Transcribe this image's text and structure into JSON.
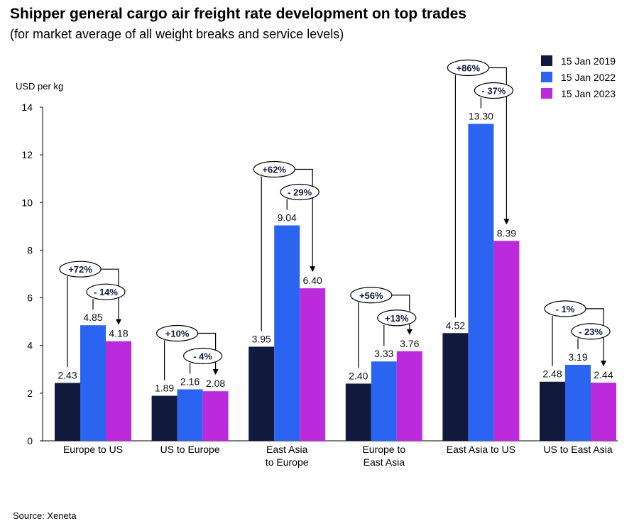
{
  "title": "Shipper general cargo air freight rate development on top trades",
  "subtitle": "(for market average of all weight breaks and service levels)",
  "source": "Source: Xeneta",
  "chart_data": {
    "type": "bar",
    "ylabel": "USD per kg",
    "ylim": [
      0,
      14
    ],
    "yticks": [
      0,
      2,
      4,
      6,
      8,
      10,
      12,
      14
    ],
    "grid": false,
    "legend_position": "top-right",
    "categories": [
      [
        "Europe to US"
      ],
      [
        "US to Europe"
      ],
      [
        "East Asia",
        "to Europe"
      ],
      [
        "Europe to",
        "East Asia"
      ],
      [
        "East Asia to US"
      ],
      [
        "US to East Asia"
      ]
    ],
    "series": [
      {
        "name": "15 Jan 2019",
        "color": "#111a3c",
        "values": [
          2.43,
          1.89,
          3.95,
          2.4,
          4.52,
          2.48
        ],
        "labels": [
          "2.43",
          "1.89",
          "3.95",
          "2.40",
          "4.52",
          "2.48"
        ]
      },
      {
        "name": "15 Jan 2022",
        "color": "#2b64f0",
        "values": [
          4.85,
          2.16,
          9.04,
          3.33,
          13.3,
          3.19
        ],
        "labels": [
          "4.85",
          "2.16",
          "9.04",
          "3.33",
          "13.30",
          "3.19"
        ]
      },
      {
        "name": "15 Jan 2023",
        "color": "#bb2bdc",
        "values": [
          4.18,
          2.08,
          6.4,
          3.76,
          8.39,
          2.44
        ],
        "labels": [
          "4.18",
          "2.08",
          "6.40",
          "3.76",
          "8.39",
          "2.44"
        ]
      }
    ],
    "annotations": {
      "change_2019_to_2023": [
        "+72%",
        "+10%",
        "+62%",
        "+56%",
        "+86%",
        "- 1%"
      ],
      "change_2022_to_2023": [
        "- 14%",
        "- 4%",
        "- 29%",
        "+13%",
        "- 37%",
        "- 23%"
      ]
    }
  }
}
